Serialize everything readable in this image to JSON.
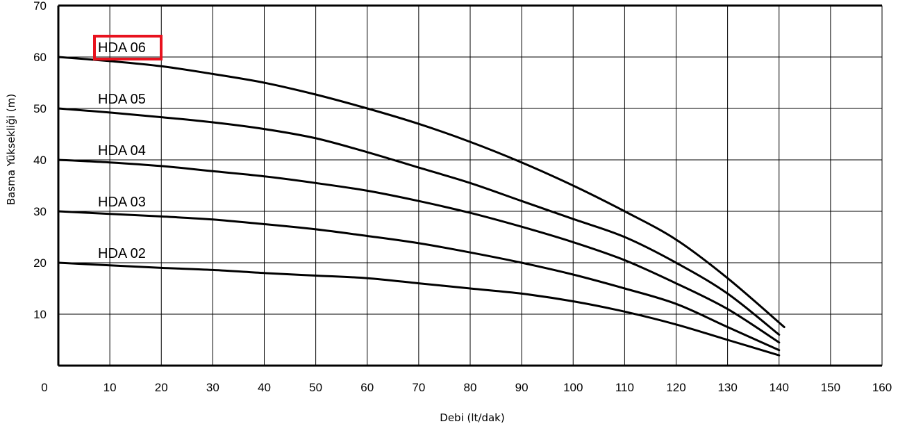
{
  "chart_data": {
    "type": "line",
    "xlabel": "Debi (lt/dak)",
    "ylabel": "Basma Yüksekliği (m)",
    "xlim": [
      0,
      160
    ],
    "ylim": [
      0,
      70
    ],
    "x_ticks": [
      "0",
      "10",
      "20",
      "30",
      "40",
      "50",
      "60",
      "70",
      "80",
      "90",
      "100",
      "110",
      "120",
      "130",
      "140",
      "150",
      "160"
    ],
    "y_ticks": [
      "10",
      "20",
      "30",
      "40",
      "50",
      "60",
      "70"
    ],
    "grid": true,
    "highlighted_series": "HDA 06",
    "highlight_color": "#e8121e",
    "series": [
      {
        "name": "HDA 02",
        "x": [
          0,
          10,
          20,
          30,
          40,
          50,
          60,
          70,
          80,
          90,
          100,
          110,
          120,
          130,
          140
        ],
        "y": [
          20,
          19.5,
          19,
          18.6,
          18,
          17.5,
          17,
          16,
          15,
          14,
          12.5,
          10.5,
          8,
          5,
          2
        ]
      },
      {
        "name": "HDA 03",
        "x": [
          0,
          10,
          20,
          30,
          40,
          50,
          60,
          70,
          80,
          90,
          100,
          110,
          120,
          130,
          140
        ],
        "y": [
          30,
          29.5,
          29,
          28.4,
          27.5,
          26.5,
          25.2,
          23.8,
          22,
          20,
          17.7,
          15,
          12,
          7.5,
          3
        ]
      },
      {
        "name": "HDA 04",
        "x": [
          0,
          10,
          20,
          30,
          40,
          50,
          60,
          70,
          80,
          90,
          100,
          110,
          120,
          130,
          140
        ],
        "y": [
          40,
          39.5,
          38.8,
          37.8,
          36.8,
          35.5,
          34,
          32,
          29.7,
          27,
          24,
          20.5,
          16,
          11,
          4.5
        ]
      },
      {
        "name": "HDA 05",
        "x": [
          0,
          10,
          20,
          30,
          40,
          50,
          60,
          70,
          80,
          90,
          100,
          110,
          120,
          130,
          140
        ],
        "y": [
          50,
          49.2,
          48.3,
          47.3,
          46,
          44.2,
          41.5,
          38.5,
          35.5,
          32,
          28.5,
          25,
          20,
          14,
          6
        ]
      },
      {
        "name": "HDA 06",
        "x": [
          0,
          10,
          20,
          30,
          40,
          50,
          60,
          70,
          80,
          90,
          100,
          110,
          120,
          130,
          141
        ],
        "y": [
          60,
          59.2,
          58.2,
          56.7,
          55,
          52.7,
          50,
          47,
          43.5,
          39.5,
          35,
          30,
          24.5,
          17,
          7.5
        ]
      }
    ]
  }
}
